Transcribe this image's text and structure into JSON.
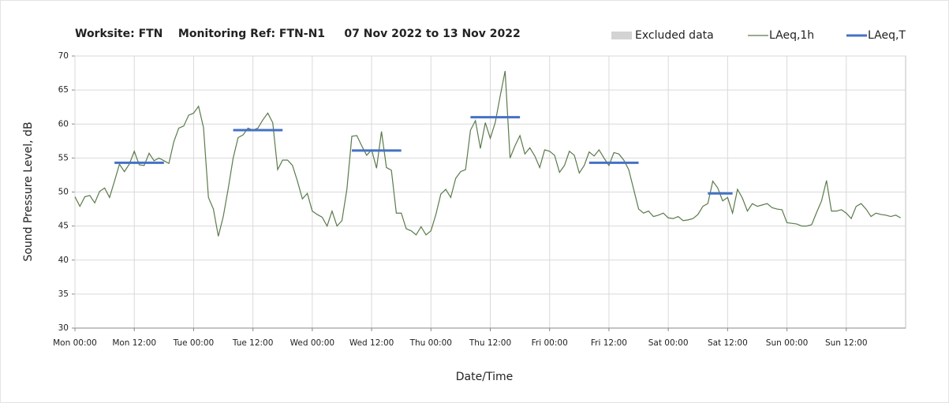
{
  "chart_data": {
    "type": "line",
    "title": "Worksite: FTN    Monitoring Ref: FTN-N1     07 Nov 2022 to 13 Nov 2022",
    "xlabel": "Date/Time",
    "ylabel": "Sound Pressure Level, dB",
    "xlim": [
      0,
      168
    ],
    "ylim": [
      30,
      70
    ],
    "yticks": [
      30,
      35,
      40,
      45,
      50,
      55,
      60,
      65,
      70
    ],
    "xticks": [
      {
        "value": 0,
        "label": "Mon 00:00"
      },
      {
        "value": 12,
        "label": "Mon 12:00"
      },
      {
        "value": 24,
        "label": "Tue 00:00"
      },
      {
        "value": 36,
        "label": "Tue 12:00"
      },
      {
        "value": 48,
        "label": "Wed 00:00"
      },
      {
        "value": 60,
        "label": "Wed 12:00"
      },
      {
        "value": 72,
        "label": "Thu 00:00"
      },
      {
        "value": 84,
        "label": "Thu 12:00"
      },
      {
        "value": 96,
        "label": "Fri 00:00"
      },
      {
        "value": 108,
        "label": "Fri 12:00"
      },
      {
        "value": 120,
        "label": "Sat 00:00"
      },
      {
        "value": 132,
        "label": "Sat 12:00"
      },
      {
        "value": 144,
        "label": "Sun 00:00"
      },
      {
        "value": 156,
        "label": "Sun 12:00"
      }
    ],
    "grid": true,
    "legend": "top-right",
    "excluded_legend": {
      "name": "Excluded data",
      "color": "#d3d3d3"
    },
    "series": [
      {
        "name": "LAeq,1h",
        "color": "#5b7a4b",
        "x": [
          0,
          1,
          2,
          3,
          4,
          5,
          6,
          7,
          8,
          9,
          10,
          11,
          12,
          13,
          14,
          15,
          16,
          17,
          18,
          19,
          20,
          21,
          22,
          23,
          24,
          25,
          26,
          27,
          28,
          29,
          30,
          31,
          32,
          33,
          34,
          35,
          36,
          37,
          38,
          39,
          40,
          41,
          42,
          43,
          44,
          45,
          46,
          47,
          48,
          49,
          50,
          51,
          52,
          53,
          54,
          55,
          56,
          57,
          58,
          59,
          60,
          61,
          62,
          63,
          64,
          65,
          66,
          67,
          68,
          69,
          70,
          71,
          72,
          73,
          74,
          75,
          76,
          77,
          78,
          79,
          80,
          81,
          82,
          83,
          84,
          85,
          86,
          87,
          88,
          89,
          90,
          91,
          92,
          93,
          94,
          95,
          96,
          97,
          98,
          99,
          100,
          101,
          102,
          103,
          104,
          105,
          106,
          107,
          108,
          109,
          110,
          111,
          112,
          113,
          114,
          115,
          116,
          117,
          118,
          119,
          120,
          121,
          122,
          123,
          124,
          125,
          126,
          127,
          128,
          129,
          130,
          131,
          132,
          133,
          134,
          135,
          136,
          137,
          138,
          139,
          140,
          141,
          142,
          143,
          144,
          145,
          146,
          147,
          148,
          149,
          150,
          151,
          152,
          153,
          154,
          155,
          156,
          157,
          158,
          159,
          160,
          161,
          162,
          163,
          164,
          165,
          166,
          167
        ],
        "values": [
          49.3,
          47.9,
          49.3,
          49.5,
          48.4,
          50.1,
          50.6,
          49.2,
          51.6,
          54.1,
          53,
          54.1,
          56,
          54,
          53.9,
          55.7,
          54.6,
          55,
          54.6,
          54.2,
          57.4,
          59.4,
          59.7,
          61.3,
          61.6,
          62.6,
          59.5,
          49.2,
          47.5,
          43.5,
          46.4,
          50.5,
          55,
          58,
          58.4,
          59.4,
          59.1,
          59.4,
          60.6,
          61.6,
          60.2,
          53.3,
          54.7,
          54.7,
          53.9,
          51.6,
          49,
          49.8,
          47.2,
          46.7,
          46.3,
          45,
          47.2,
          45,
          45.8,
          50.4,
          58.2,
          58.3,
          56.8,
          55.4,
          56.2,
          53.5,
          58.9,
          53.6,
          53.2,
          46.9,
          46.9,
          44.6,
          44.3,
          43.7,
          44.9,
          43.7,
          44.3,
          46.7,
          49.7,
          50.4,
          49.2,
          52,
          53,
          53.3,
          59.1,
          60.5,
          56.4,
          60.2,
          57.9,
          60.2,
          64.1,
          67.8,
          55,
          56.8,
          58.3,
          55.6,
          56.5,
          55.3,
          53.6,
          56.2,
          56,
          55.4,
          52.9,
          53.9,
          56,
          55.4,
          52.8,
          53.9,
          55.9,
          55.3,
          56.2,
          55,
          53.9,
          55.8,
          55.6,
          54.7,
          53.3,
          50.4,
          47.5,
          46.9,
          47.2,
          46.4,
          46.6,
          46.9,
          46.2,
          46.1,
          46.4,
          45.8,
          45.9,
          46.1,
          46.7,
          47.9,
          48.3,
          51.6,
          50.6,
          48.7,
          49.2,
          46.9,
          50.4,
          49.1,
          47.2,
          48.3,
          47.9,
          48.1,
          48.3,
          47.7,
          47.5,
          47.4,
          45.5,
          45.4,
          45.3,
          45,
          45,
          45.2,
          47,
          48.7,
          51.7,
          47.2,
          47.2,
          47.4,
          46.9,
          46.1,
          47.9,
          48.3,
          47.5,
          46.4,
          46.9,
          46.7,
          46.6,
          46.4,
          46.6,
          46.2
        ]
      },
      {
        "name": "LAeq,T",
        "color": "#4472c4",
        "segments": [
          {
            "start": 8,
            "end": 18,
            "value": 54.3
          },
          {
            "start": 32,
            "end": 42,
            "value": 59.1
          },
          {
            "start": 56,
            "end": 66,
            "value": 56.1
          },
          {
            "start": 80,
            "end": 90,
            "value": 61.0
          },
          {
            "start": 104,
            "end": 114,
            "value": 54.3
          },
          {
            "start": 128,
            "end": 133,
            "value": 49.8
          }
        ]
      }
    ]
  }
}
